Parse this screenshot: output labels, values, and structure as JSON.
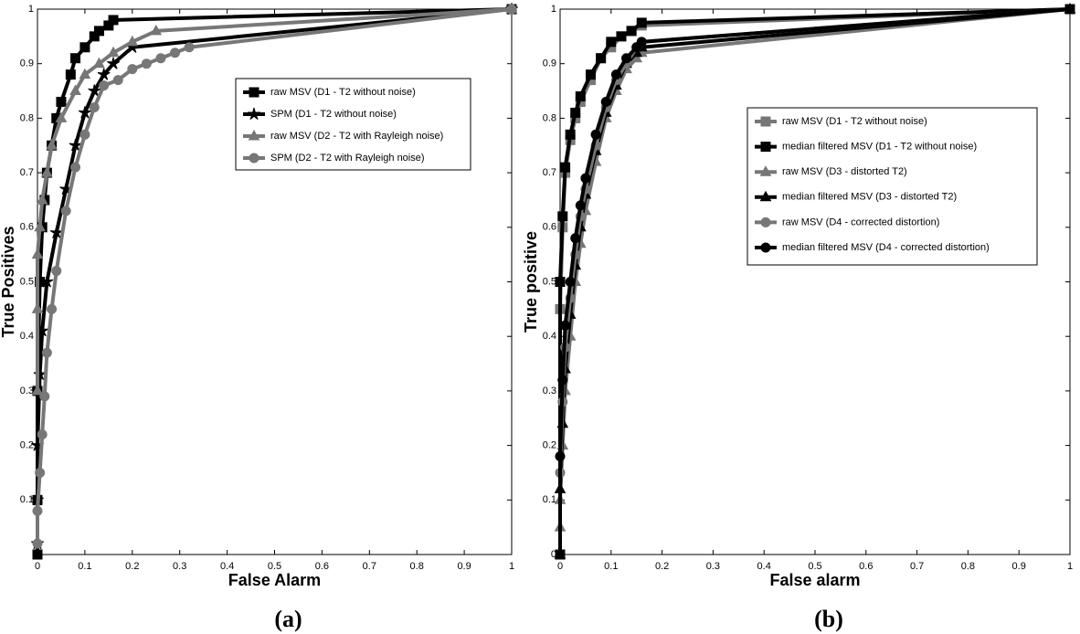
{
  "chart_data": [
    {
      "type": "line",
      "label": "(a)",
      "xlabel": "False Alarm",
      "ylabel": "True Positives",
      "xlim": [
        0,
        1
      ],
      "ylim": [
        0,
        1
      ],
      "xticks": [
        0,
        0.1,
        0.2,
        0.3,
        0.4,
        0.5,
        0.6,
        0.7,
        0.8,
        0.9,
        1
      ],
      "yticks": [
        0.1,
        0.2,
        0.3,
        0.4,
        0.5,
        0.6,
        0.7,
        0.8,
        0.9,
        1
      ],
      "legend": "upper right",
      "series": [
        {
          "name": "raw MSV (D1 - T2 without noise)",
          "color": "#000000",
          "marker": "square",
          "x": [
            0,
            0,
            0,
            0.005,
            0.01,
            0.015,
            0.02,
            0.03,
            0.04,
            0.05,
            0.07,
            0.08,
            0.1,
            0.12,
            0.13,
            0.15,
            0.16,
            1
          ],
          "values": [
            0,
            0.1,
            0.3,
            0.5,
            0.6,
            0.65,
            0.7,
            0.75,
            0.8,
            0.83,
            0.88,
            0.91,
            0.93,
            0.95,
            0.96,
            0.97,
            0.98,
            1
          ]
        },
        {
          "name": "SPM (D1 - T2 without noise)",
          "color": "#000000",
          "marker": "star",
          "x": [
            0,
            0,
            0,
            0.005,
            0.01,
            0.02,
            0.04,
            0.06,
            0.08,
            0.1,
            0.12,
            0.14,
            0.16,
            0.2,
            1
          ],
          "values": [
            0.02,
            0.1,
            0.2,
            0.33,
            0.41,
            0.5,
            0.59,
            0.67,
            0.75,
            0.81,
            0.85,
            0.88,
            0.9,
            0.93,
            1
          ]
        },
        {
          "name": "raw MSV (D2 - T2 with Rayleigh noise)",
          "color": "#777777",
          "marker": "triangle",
          "x": [
            0,
            0,
            0,
            0.005,
            0.01,
            0.02,
            0.03,
            0.05,
            0.08,
            0.1,
            0.13,
            0.16,
            0.2,
            0.25,
            1
          ],
          "values": [
            0.3,
            0.45,
            0.55,
            0.6,
            0.65,
            0.7,
            0.75,
            0.8,
            0.85,
            0.88,
            0.9,
            0.92,
            0.94,
            0.96,
            1
          ]
        },
        {
          "name": "SPM (D2 - T2 with Rayleigh noise)",
          "color": "#777777",
          "marker": "circle",
          "x": [
            0,
            0,
            0.005,
            0.01,
            0.015,
            0.02,
            0.03,
            0.04,
            0.06,
            0.08,
            0.1,
            0.12,
            0.14,
            0.17,
            0.2,
            0.23,
            0.26,
            0.29,
            0.32,
            1
          ],
          "values": [
            0.02,
            0.08,
            0.15,
            0.22,
            0.29,
            0.37,
            0.45,
            0.52,
            0.63,
            0.71,
            0.77,
            0.82,
            0.86,
            0.87,
            0.89,
            0.9,
            0.91,
            0.92,
            0.93,
            1
          ]
        }
      ]
    },
    {
      "type": "line",
      "label": "(b)",
      "xlabel": "False alarm",
      "ylabel": "True positive",
      "xlim": [
        0,
        1
      ],
      "ylim": [
        0,
        1
      ],
      "xticks": [
        0,
        0.1,
        0.2,
        0.3,
        0.4,
        0.5,
        0.6,
        0.7,
        0.8,
        0.9,
        1
      ],
      "yticks": [
        0,
        0.1,
        0.2,
        0.3,
        0.4,
        0.5,
        0.6,
        0.7,
        0.8,
        0.9,
        1
      ],
      "legend": "right",
      "series": [
        {
          "name": "raw MSV (D1 - T2 without noise)",
          "color": "#777777",
          "marker": "square",
          "x": [
            0,
            0,
            0.005,
            0.01,
            0.02,
            0.03,
            0.04,
            0.06,
            0.08,
            0.1,
            0.12,
            0.14,
            0.16,
            1
          ],
          "values": [
            0,
            0.45,
            0.6,
            0.7,
            0.76,
            0.8,
            0.83,
            0.87,
            0.91,
            0.93,
            0.95,
            0.96,
            0.97,
            1
          ]
        },
        {
          "name": "median filtered MSV (D1 - T2 without noise)",
          "color": "#000000",
          "marker": "square",
          "x": [
            0,
            0,
            0.005,
            0.01,
            0.02,
            0.03,
            0.04,
            0.06,
            0.08,
            0.1,
            0.12,
            0.14,
            0.16,
            1
          ],
          "values": [
            0,
            0.5,
            0.62,
            0.71,
            0.77,
            0.81,
            0.84,
            0.88,
            0.91,
            0.94,
            0.95,
            0.96,
            0.975,
            1
          ]
        },
        {
          "name": "raw MSV (D3 - distorted T2)",
          "color": "#777777",
          "marker": "triangle",
          "x": [
            0,
            0,
            0.005,
            0.01,
            0.02,
            0.03,
            0.04,
            0.05,
            0.07,
            0.09,
            0.11,
            0.13,
            0.15,
            0.16,
            1
          ],
          "values": [
            0.05,
            0.1,
            0.2,
            0.3,
            0.4,
            0.5,
            0.57,
            0.63,
            0.72,
            0.8,
            0.85,
            0.89,
            0.91,
            0.92,
            1
          ]
        },
        {
          "name": "median filtered MSV (D3 - distorted T2)",
          "color": "#000000",
          "marker": "triangle",
          "x": [
            0,
            0,
            0.005,
            0.01,
            0.02,
            0.03,
            0.04,
            0.05,
            0.07,
            0.09,
            0.11,
            0.13,
            0.15,
            0.16,
            1
          ],
          "values": [
            0,
            0.12,
            0.24,
            0.34,
            0.44,
            0.53,
            0.6,
            0.66,
            0.74,
            0.81,
            0.86,
            0.9,
            0.92,
            0.93,
            1
          ]
        },
        {
          "name": "raw MSV (D4 - corrected distortion)",
          "color": "#777777",
          "marker": "circle",
          "x": [
            0,
            0,
            0.005,
            0.01,
            0.02,
            0.03,
            0.04,
            0.05,
            0.07,
            0.09,
            0.11,
            0.13,
            0.15,
            0.16,
            1
          ],
          "values": [
            0,
            0.15,
            0.28,
            0.38,
            0.47,
            0.55,
            0.62,
            0.67,
            0.75,
            0.82,
            0.87,
            0.9,
            0.93,
            0.94,
            1
          ]
        },
        {
          "name": "median filtered MSV (D4 - corrected distortion)",
          "color": "#000000",
          "marker": "circle",
          "x": [
            0,
            0,
            0.005,
            0.01,
            0.02,
            0.03,
            0.04,
            0.05,
            0.07,
            0.09,
            0.11,
            0.13,
            0.15,
            0.16,
            1
          ],
          "values": [
            0,
            0.18,
            0.32,
            0.42,
            0.5,
            0.58,
            0.64,
            0.69,
            0.77,
            0.83,
            0.88,
            0.91,
            0.93,
            0.94,
            1
          ]
        }
      ]
    }
  ]
}
